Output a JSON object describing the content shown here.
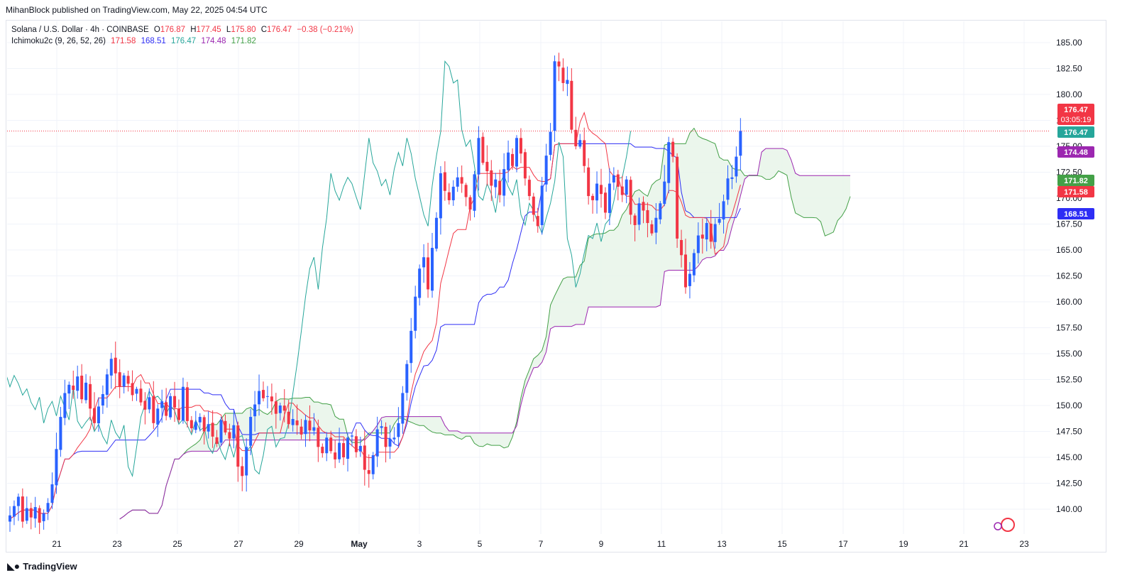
{
  "header": {
    "text": "MihanBlock published on TradingView.com, May 22, 2025 04:54 UTC"
  },
  "legend": {
    "symbol": "Solana / U.S. Dollar · 4h · COINBASE",
    "o_label": "O",
    "o": "176.87",
    "h_label": "H",
    "h": "177.45",
    "l_label": "L",
    "l": "175.80",
    "c_label": "C",
    "c": "176.47",
    "change": "−0.38 (−0.21%)",
    "indicator": "Ichimoku2c (9, 26, 52, 26)",
    "values": [
      "171.58",
      "168.51",
      "176.47",
      "174.48",
      "171.82"
    ]
  },
  "footer": {
    "brand": "TradingView",
    "logo": "tradingview-logo"
  },
  "price_badges": [
    {
      "value": "176.47",
      "sub": "03:05:19",
      "color": "#f23645"
    },
    {
      "value": "176.47",
      "color": "#26a69a"
    },
    {
      "value": "174.48",
      "color": "#9c27b0"
    },
    {
      "value": "171.82",
      "color": "#43a047"
    },
    {
      "value": "171.58",
      "color": "#f23645"
    },
    {
      "value": "168.51",
      "color": "#2e2ef5"
    }
  ],
  "chart_data": {
    "type": "candlestick",
    "symbol": "Solana / U.S. Dollar",
    "interval": "4h",
    "exchange": "COINBASE",
    "y_axis": {
      "ticks": [
        140.0,
        142.5,
        145.0,
        147.5,
        150.0,
        152.5,
        155.0,
        157.5,
        160.0,
        162.5,
        165.0,
        167.5,
        170.0,
        172.5,
        175.0,
        177.5,
        180.0,
        182.5,
        185.0
      ],
      "range": [
        137.5,
        186.5
      ],
      "position": "right"
    },
    "x_axis": {
      "ticks": [
        "21",
        "23",
        "25",
        "27",
        "29",
        "May",
        "3",
        "5",
        "7",
        "9",
        "11",
        "13",
        "15",
        "17",
        "19",
        "21",
        "23"
      ]
    },
    "last_price": 176.47,
    "colors": {
      "up": "#2962ff",
      "down": "#f23645",
      "tenkan": "#f23645",
      "kijun": "#2e2ef5",
      "chikou": "#26a69a",
      "span_a": "#43a047",
      "span_b": "#9c27b0",
      "cloud": "#e8f5e9"
    },
    "closes": [
      139.4,
      140.3,
      141.2,
      138.8,
      140.1,
      139.2,
      140.2,
      138.7,
      139.6,
      140.6,
      142.4,
      145.8,
      148.9,
      151.2,
      152.0,
      151.5,
      152.8,
      150.6,
      152.2,
      149.7,
      148.3,
      149.9,
      151.1,
      153.0,
      154.5,
      153.1,
      151.8,
      152.9,
      152.1,
      151.0,
      151.6,
      150.3,
      149.6,
      150.8,
      148.3,
      149.7,
      150.4,
      149.0,
      150.9,
      149.8,
      148.6,
      151.8,
      148.5,
      147.8,
      148.4,
      148.9,
      147.5,
      148.2,
      147.0,
      146.3,
      148.6,
      147.4,
      146.8,
      148.1,
      144.1,
      143.2,
      146.0,
      148.9,
      150.1,
      151.4,
      150.7,
      150.9,
      150.4,
      149.2,
      150.0,
      149.5,
      148.2,
      148.7,
      148.1,
      147.2,
      148.6,
      147.6,
      147.9,
      146.0,
      145.4,
      146.9,
      145.6,
      144.8,
      146.4,
      145.0,
      146.9,
      147.1,
      145.5,
      146.1,
      143.8,
      143.4,
      145.2,
      147.7,
      148.0,
      146.0,
      146.8,
      146.9,
      148.3,
      151.2,
      154.0,
      157.2,
      160.5,
      163.2,
      164.3,
      161.2,
      165.2,
      168.1,
      172.4,
      170.7,
      169.8,
      171.1,
      172.0,
      171.4,
      170.1,
      168.9,
      172.3,
      175.8,
      173.4,
      172.6,
      171.2,
      171.8,
      170.3,
      172.8,
      174.4,
      173.1,
      175.8,
      174.3,
      171.9,
      170.2,
      168.4,
      167.3,
      171.2,
      174.1,
      176.4,
      183.2,
      182.7,
      181.1,
      181.4,
      176.6,
      175.0,
      175.6,
      173.1,
      170.2,
      169.8,
      171.4,
      170.4,
      168.6,
      171.4,
      172.2,
      171.1,
      170.3,
      171.8,
      168.4,
      167.4,
      169.5,
      168.8,
      167.6,
      166.6,
      168.1,
      169.5,
      171.6,
      175.4,
      174.0,
      166.1,
      164.5,
      161.4,
      162.7,
      164.7,
      166.4,
      166.1,
      167.6,
      165.8,
      167.5,
      168.0,
      169.7,
      171.9,
      172.0,
      174.0,
      176.47
    ],
    "tenkan_end": 171.58,
    "kijun_end": 168.51,
    "chikou_end": 176.47,
    "span_a_end": 171.82,
    "span_b_end": 174.48
  }
}
